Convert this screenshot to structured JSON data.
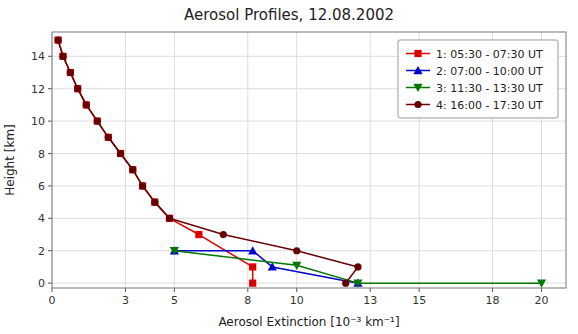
{
  "chart_data": {
    "type": "line",
    "title": "Aerosol Profiles, 12.08.2002",
    "x_label": "Aerosol Extinction [10⁻³ km⁻¹]",
    "y_label": "Height [km]",
    "xlim": [
      0,
      21
    ],
    "ylim": [
      -0.3,
      15.5
    ],
    "xticks": [
      0,
      3,
      5,
      8,
      10,
      13,
      15,
      18,
      20
    ],
    "yticks": [
      0,
      2,
      4,
      6,
      8,
      10,
      12,
      14
    ],
    "grid": true,
    "legend": "upper-right",
    "series": [
      {
        "name": "1: 05:30 - 07:30 UT",
        "color": "#dd0000",
        "marker": "square",
        "x": [
          0.25,
          0.45,
          0.75,
          1.05,
          1.4,
          1.85,
          2.3,
          2.8,
          3.3,
          3.7,
          4.2,
          4.8,
          6.0,
          8.2,
          8.2
        ],
        "values": [
          15.0,
          14.0,
          13.0,
          12.0,
          11.0,
          10.0,
          9.0,
          8.0,
          7.0,
          6.0,
          5.0,
          4.0,
          3.0,
          1.0,
          0.0
        ]
      },
      {
        "name": "2: 07:00 - 10:00 UT",
        "color": "#0000cc",
        "marker": "triangle-up",
        "x": [
          5.0,
          8.2,
          9.0,
          12.5
        ],
        "values": [
          2.0,
          2.0,
          1.0,
          0.0
        ]
      },
      {
        "name": "3: 11:30 - 13:30 UT",
        "color": "#007700",
        "marker": "triangle-down",
        "x": [
          5.0,
          10.0,
          12.5,
          20.0
        ],
        "values": [
          2.0,
          1.1,
          0.0,
          0.0
        ]
      },
      {
        "name": "4: 16:00 - 17:30 UT",
        "color": "#660000",
        "marker": "circle",
        "x": [
          0.25,
          0.45,
          0.75,
          1.05,
          1.4,
          1.85,
          2.3,
          2.8,
          3.3,
          3.7,
          4.2,
          4.8,
          7.0,
          10.0,
          12.5,
          12.0
        ],
        "values": [
          15.0,
          14.0,
          13.0,
          12.0,
          11.0,
          10.0,
          9.0,
          8.0,
          7.0,
          6.0,
          5.0,
          4.0,
          3.0,
          2.0,
          1.0,
          0.0
        ]
      }
    ]
  }
}
